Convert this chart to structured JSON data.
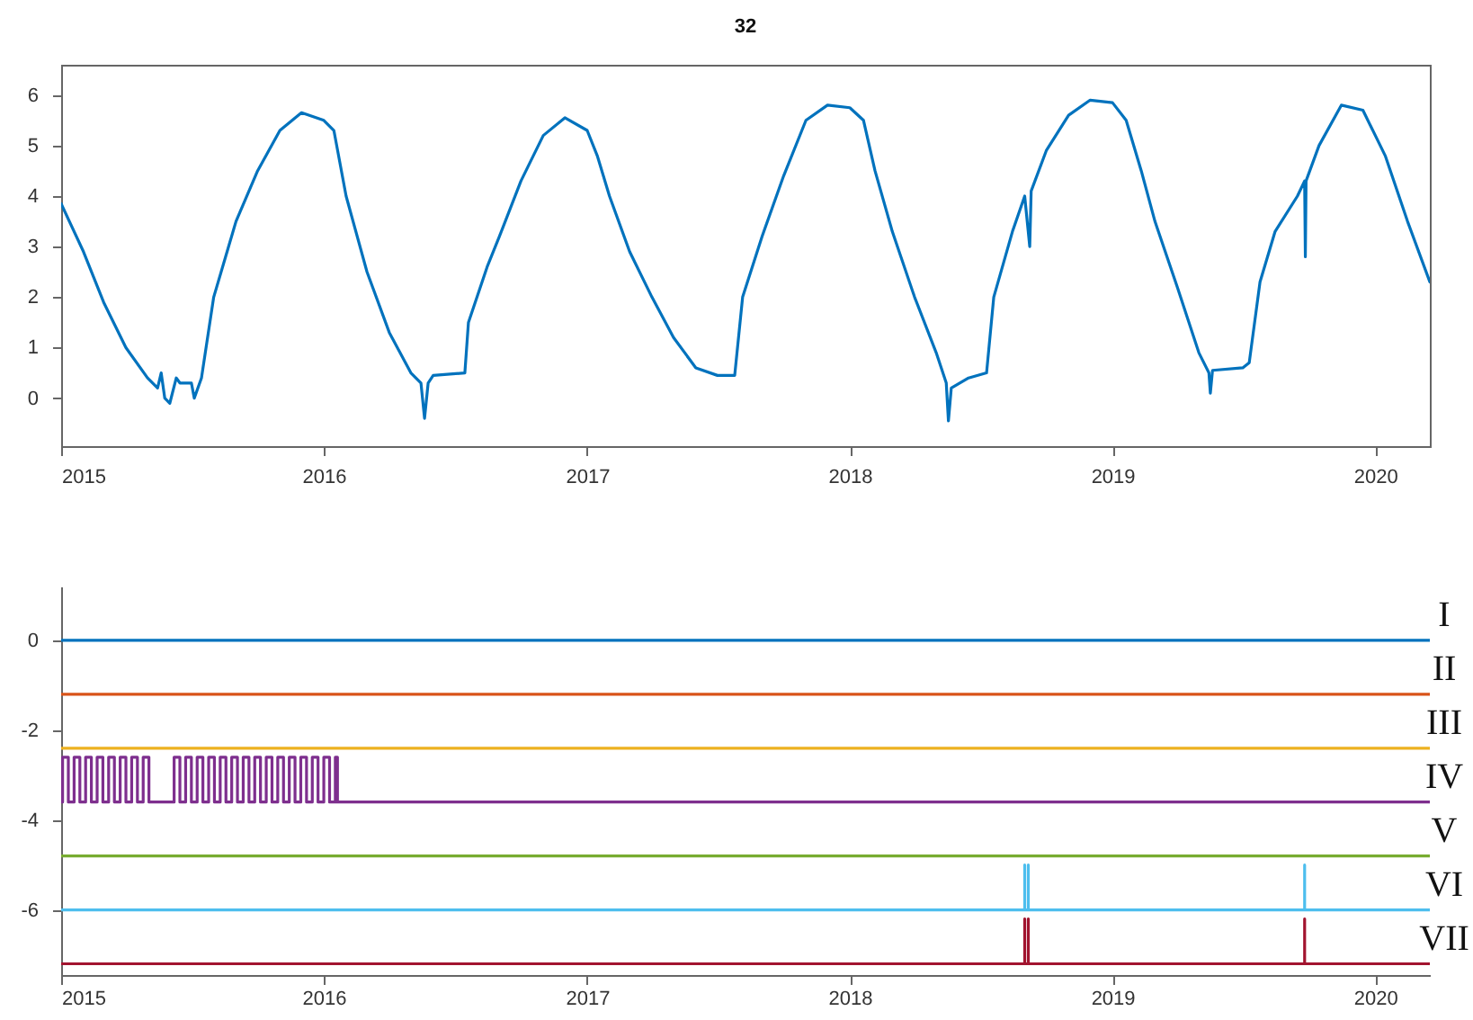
{
  "chart_data": [
    {
      "type": "line",
      "title": "32",
      "xlim": [
        "2015-01-01",
        "2020-03-17"
      ],
      "xticks": [
        "2015",
        "2016",
        "2017",
        "2018",
        "2019",
        "2020"
      ],
      "ylim": [
        -0.95,
        6.6
      ],
      "yticks": [
        0,
        1,
        2,
        3,
        4,
        5,
        6
      ],
      "series": [
        {
          "color": "#0072bd",
          "x": [
            "2015-01-01",
            "2015-02-01",
            "2015-03-01",
            "2015-04-01",
            "2015-05-01",
            "2015-05-15",
            "2015-05-20",
            "2015-05-25",
            "2015-06-01",
            "2015-06-10",
            "2015-06-15",
            "2015-07-01",
            "2015-07-05",
            "2015-07-15",
            "2015-08-01",
            "2015-09-01",
            "2015-10-01",
            "2015-11-01",
            "2015-12-01",
            "2016-01-01",
            "2016-01-15",
            "2016-02-01",
            "2016-03-01",
            "2016-04-01",
            "2016-05-01",
            "2016-05-15",
            "2016-05-20",
            "2016-05-25",
            "2016-06-01",
            "2016-07-15",
            "2016-07-20",
            "2016-08-15",
            "2016-09-01",
            "2016-10-01",
            "2016-11-01",
            "2016-12-01",
            "2017-01-01",
            "2017-01-15",
            "2017-02-01",
            "2017-03-01",
            "2017-04-01",
            "2017-05-01",
            "2017-06-01",
            "2017-07-01",
            "2017-07-25",
            "2017-08-05",
            "2017-09-01",
            "2017-10-01",
            "2017-11-01",
            "2017-12-01",
            "2018-01-01",
            "2018-01-20",
            "2018-02-05",
            "2018-03-01",
            "2018-04-01",
            "2018-05-01",
            "2018-05-15",
            "2018-05-18",
            "2018-05-22",
            "2018-06-15",
            "2018-07-10",
            "2018-07-20",
            "2018-08-15",
            "2018-09-01",
            "2018-09-08",
            "2018-09-10",
            "2018-10-01",
            "2018-11-01",
            "2018-12-01",
            "2019-01-01",
            "2019-01-20",
            "2019-02-10",
            "2019-03-01",
            "2019-04-01",
            "2019-05-01",
            "2019-05-15",
            "2019-05-17",
            "2019-05-20",
            "2019-07-01",
            "2019-07-10",
            "2019-07-25",
            "2019-08-15",
            "2019-09-15",
            "2019-09-25",
            "2019-09-26",
            "2019-09-27",
            "2019-10-15",
            "2019-11-15",
            "2019-12-15",
            "2020-01-15",
            "2020-02-15",
            "2020-03-17"
          ],
          "values": [
            3.85,
            2.9,
            1.9,
            1.0,
            0.4,
            0.2,
            0.5,
            0.0,
            -0.1,
            0.4,
            0.3,
            0.3,
            0.0,
            0.4,
            2.0,
            3.5,
            4.5,
            5.3,
            5.65,
            5.5,
            5.3,
            4.0,
            2.5,
            1.3,
            0.5,
            0.3,
            -0.4,
            0.3,
            0.45,
            0.5,
            1.5,
            2.6,
            3.2,
            4.3,
            5.2,
            5.55,
            5.3,
            4.8,
            4.0,
            2.9,
            2.0,
            1.2,
            0.6,
            0.45,
            0.45,
            2.0,
            3.2,
            4.4,
            5.5,
            5.8,
            5.75,
            5.5,
            4.5,
            3.3,
            2.0,
            0.9,
            0.3,
            -0.45,
            0.2,
            0.4,
            0.5,
            2.0,
            3.3,
            4.0,
            3.0,
            4.1,
            4.9,
            5.6,
            5.9,
            5.85,
            5.5,
            4.5,
            3.5,
            2.2,
            0.9,
            0.5,
            0.1,
            0.55,
            0.6,
            0.7,
            2.3,
            3.3,
            4.0,
            4.3,
            2.8,
            4.3,
            5.0,
            5.8,
            5.7,
            4.8,
            3.5,
            2.3
          ]
        }
      ]
    },
    {
      "type": "line",
      "xlim": [
        "2015-01-01",
        "2020-03-17"
      ],
      "xticks": [
        "2015",
        "2016",
        "2017",
        "2018",
        "2019",
        "2020"
      ],
      "ylim": [
        -7.45,
        1.2
      ],
      "yticks": [
        -6,
        -4,
        -2,
        0
      ],
      "series": [
        {
          "name": "I",
          "color": "#0072bd",
          "x": [
            "2015-01-01",
            "2020-03-17"
          ],
          "values": [
            0,
            0
          ]
        },
        {
          "name": "II",
          "color": "#d95319",
          "x": [
            "2015-01-01",
            "2020-03-17"
          ],
          "values": [
            -1.2,
            -1.2
          ]
        },
        {
          "name": "III",
          "color": "#edb120",
          "x": [
            "2015-01-01",
            "2020-03-17"
          ],
          "values": [
            -2.4,
            -2.4
          ]
        },
        {
          "name": "IV",
          "color": "#7e2f8e",
          "x": [
            "2015-01-01",
            "2015-01-03",
            "2015-01-03",
            "2015-01-11",
            "2015-01-11",
            "2015-01-19",
            "2015-01-19",
            "2015-01-27",
            "2015-01-27",
            "2015-02-04",
            "2015-02-04",
            "2015-02-12",
            "2015-02-12",
            "2015-02-20",
            "2015-02-20",
            "2015-02-28",
            "2015-02-28",
            "2015-03-08",
            "2015-03-08",
            "2015-03-16",
            "2015-03-16",
            "2015-03-24",
            "2015-03-24",
            "2015-04-01",
            "2015-04-01",
            "2015-04-09",
            "2015-04-09",
            "2015-04-17",
            "2015-04-17",
            "2015-04-25",
            "2015-04-25",
            "2015-05-03",
            "2015-05-03",
            "2015-06-07",
            "2015-06-07",
            "2015-06-15",
            "2015-06-15",
            "2015-06-23",
            "2015-06-23",
            "2015-07-01",
            "2015-07-01",
            "2015-07-09",
            "2015-07-09",
            "2015-07-17",
            "2015-07-17",
            "2015-07-25",
            "2015-07-25",
            "2015-08-02",
            "2015-08-02",
            "2015-08-10",
            "2015-08-10",
            "2015-08-18",
            "2015-08-18",
            "2015-08-26",
            "2015-08-26",
            "2015-09-03",
            "2015-09-03",
            "2015-09-11",
            "2015-09-11",
            "2015-09-19",
            "2015-09-19",
            "2015-09-27",
            "2015-09-27",
            "2015-10-05",
            "2015-10-05",
            "2015-10-13",
            "2015-10-13",
            "2015-10-21",
            "2015-10-21",
            "2015-10-29",
            "2015-10-29",
            "2015-11-06",
            "2015-11-06",
            "2015-11-14",
            "2015-11-14",
            "2015-11-22",
            "2015-11-22",
            "2015-11-30",
            "2015-11-30",
            "2015-12-08",
            "2015-12-08",
            "2015-12-16",
            "2015-12-16",
            "2015-12-24",
            "2015-12-24",
            "2016-01-01",
            "2016-01-01",
            "2016-01-09",
            "2016-01-09",
            "2016-01-17",
            "2016-01-17",
            "2016-01-20",
            "2016-01-20",
            "2020-03-17"
          ],
          "values": [
            -3.6,
            -3.6,
            -2.6,
            -2.6,
            -3.6,
            -3.6,
            -2.6,
            -2.6,
            -3.6,
            -3.6,
            -2.6,
            -2.6,
            -3.6,
            -3.6,
            -2.6,
            -2.6,
            -3.6,
            -3.6,
            -2.6,
            -2.6,
            -3.6,
            -3.6,
            -2.6,
            -2.6,
            -3.6,
            -3.6,
            -2.6,
            -2.6,
            -3.6,
            -3.6,
            -2.6,
            -2.6,
            -3.6,
            -3.6,
            -2.6,
            -2.6,
            -3.6,
            -3.6,
            -2.6,
            -2.6,
            -3.6,
            -3.6,
            -2.6,
            -2.6,
            -3.6,
            -3.6,
            -2.6,
            -2.6,
            -3.6,
            -3.6,
            -2.6,
            -2.6,
            -3.6,
            -3.6,
            -2.6,
            -2.6,
            -3.6,
            -3.6,
            -2.6,
            -2.6,
            -3.6,
            -3.6,
            -2.6,
            -2.6,
            -3.6,
            -3.6,
            -2.6,
            -2.6,
            -3.6,
            -3.6,
            -2.6,
            -2.6,
            -3.6,
            -3.6,
            -2.6,
            -2.6,
            -3.6,
            -3.6,
            -2.6,
            -2.6,
            -3.6,
            -3.6,
            -2.6,
            -2.6,
            -3.6,
            -3.6,
            -2.6,
            -2.6,
            -3.6,
            -3.6,
            -2.6,
            -2.6,
            -3.6,
            -3.6
          ]
        },
        {
          "name": "V",
          "color": "#77ac30",
          "x": [
            "2015-01-01",
            "2020-03-17"
          ],
          "values": [
            -4.8,
            -4.8
          ]
        },
        {
          "name": "VI",
          "color": "#4dbeee",
          "x": [
            "2015-01-01",
            "2018-09-01",
            "2018-09-01",
            "2018-09-01",
            "2018-09-06",
            "2018-09-06",
            "2018-09-06",
            "2019-09-25",
            "2019-09-25",
            "2019-09-25",
            "2020-03-17"
          ],
          "values": [
            -6,
            -6,
            -5,
            -6,
            -6,
            -5,
            -6,
            -6,
            -5,
            -6,
            -6
          ]
        },
        {
          "name": "VII",
          "color": "#a2142f",
          "x": [
            "2015-01-01",
            "2018-09-01",
            "2018-09-01",
            "2018-09-01",
            "2018-09-06",
            "2018-09-06",
            "2018-09-06",
            "2019-09-25",
            "2019-09-25",
            "2019-09-25",
            "2020-03-17"
          ],
          "values": [
            -7.2,
            -7.2,
            -6.2,
            -7.2,
            -7.2,
            -6.2,
            -7.2,
            -7.2,
            -6.2,
            -7.2,
            -7.2
          ]
        }
      ]
    }
  ]
}
